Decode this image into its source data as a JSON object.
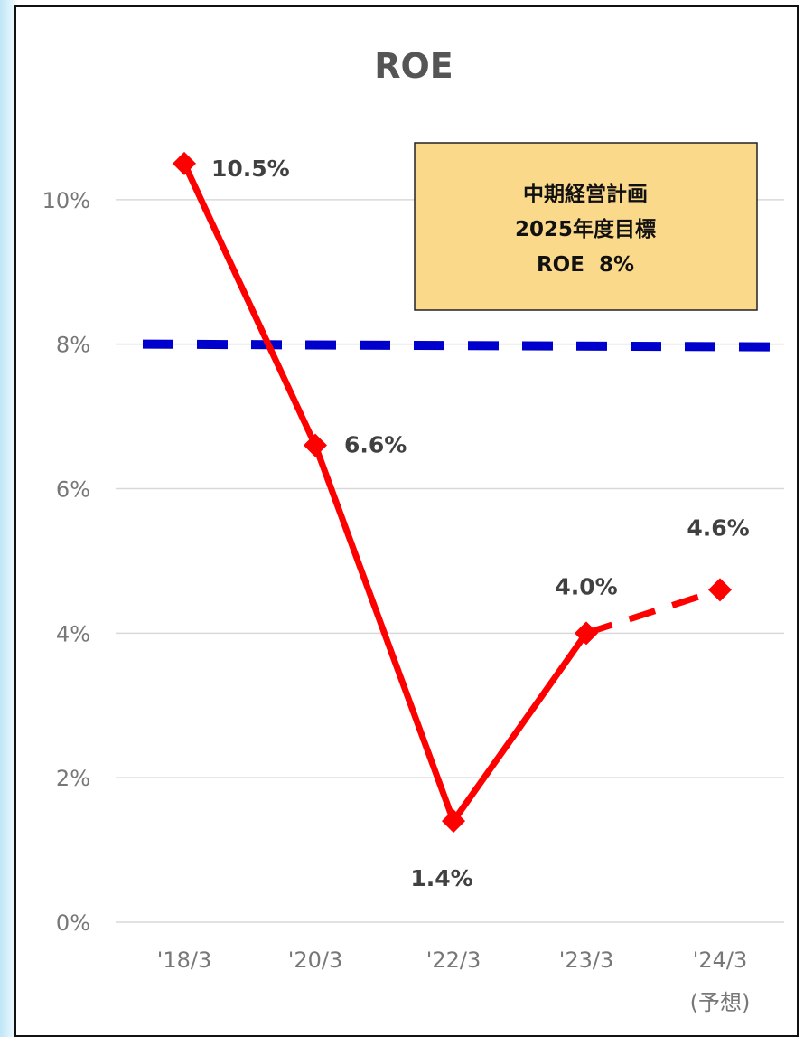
{
  "chart_data": {
    "type": "line",
    "title": "ROE",
    "categories": [
      "'18/3",
      "'20/3",
      "'22/3",
      "'23/3",
      "'24/3"
    ],
    "category_sublabels": [
      "",
      "",
      "",
      "",
      "(予想)"
    ],
    "series": [
      {
        "values": [
          10.5,
          6.6,
          1.4,
          4.0,
          4.6
        ],
        "data_labels": [
          "10.5%",
          "6.6%",
          "1.4%",
          "4.0%",
          "4.6%"
        ],
        "color": "#ff0000",
        "forecast_from_index": 3
      }
    ],
    "target_line": {
      "value": 8,
      "color": "#0000cc",
      "style": "dashed"
    },
    "yticks": [
      "0%",
      "2%",
      "4%",
      "6%",
      "8%",
      "10%"
    ],
    "ylim": [
      0,
      12
    ],
    "grid": true,
    "annotation": {
      "lines": [
        "中期経営計画",
        "2025年度目標",
        "ROE  8%"
      ],
      "background": "#fbd98a",
      "placement": "top-right"
    }
  }
}
